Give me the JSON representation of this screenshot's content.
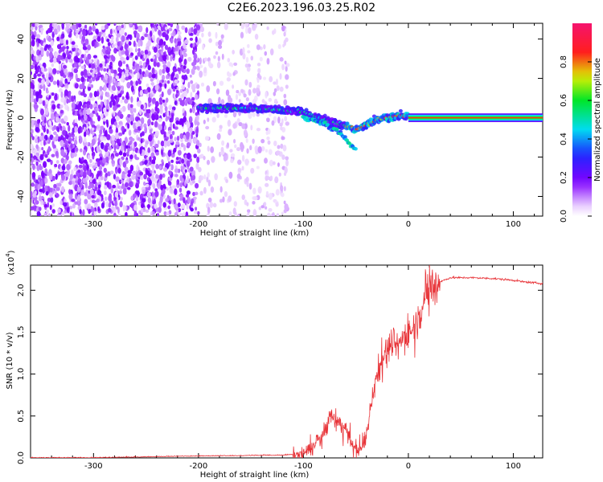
{
  "title": "C2E6.2023.196.03.25.R02",
  "chart_data": [
    {
      "type": "heatmap",
      "xlabel": "Height of straight line (km)",
      "ylabel": "Frequency (Hz)",
      "xlim": [
        -360,
        128
      ],
      "ylim": [
        -50,
        48
      ],
      "xticks": [
        "-300",
        "-200",
        "-100",
        "0",
        "100"
      ],
      "yticks": [
        "-40",
        "-20",
        "0",
        "20",
        "40"
      ],
      "colorbar": {
        "label": "Normalized spectral amplitude",
        "range": [
          0.0,
          1.0
        ],
        "ticks": [
          "0.0",
          "0.2",
          "0.4",
          "0.6",
          "0.8"
        ]
      },
      "ridge_frequency_hz": {
        "x": [
          -200,
          -180,
          -150,
          -120,
          -100,
          -80,
          -60,
          -50,
          -40,
          -30,
          -20,
          -10,
          0,
          128
        ],
        "y": [
          5,
          5,
          5,
          4,
          3,
          -1,
          -4,
          -6,
          -4,
          -1,
          0,
          1,
          1,
          0
        ]
      },
      "branch_frequency_hz": {
        "x": [
          -100,
          -80,
          -70,
          -60,
          -55,
          -50
        ],
        "y": [
          0,
          -3,
          -6,
          -10,
          -14,
          -16
        ]
      }
    },
    {
      "type": "line",
      "xlabel": "Height of straight line (km)",
      "ylabel": "SNR (10 * v/v)",
      "multiplier": "(x10",
      "multiplier_exp": "4",
      "xlim": [
        -360,
        128
      ],
      "ylim": [
        0,
        2.3
      ],
      "xticks": [
        "-300",
        "-200",
        "-100",
        "0",
        "100"
      ],
      "yticks": [
        "0.0",
        "0.5",
        "1.0",
        "1.5",
        "2.0"
      ],
      "color": "#e8353a",
      "series": [
        {
          "x": [
            -360,
            -300,
            -200,
            -120,
            -100,
            -90,
            -80,
            -75,
            -70,
            -65,
            -60,
            -55,
            -50,
            -45,
            -40,
            -35,
            -30,
            -25,
            -20,
            -15,
            -10,
            -5,
            0,
            5,
            10,
            15,
            20,
            25,
            30,
            40,
            50,
            60,
            80,
            100,
            110,
            128
          ],
          "y": [
            0.0,
            0.0,
            0.02,
            0.03,
            0.05,
            0.15,
            0.3,
            0.5,
            0.45,
            0.4,
            0.35,
            0.2,
            0.1,
            0.1,
            0.25,
            0.7,
            1.0,
            1.2,
            1.3,
            1.4,
            1.35,
            1.45,
            1.5,
            1.55,
            1.7,
            1.9,
            2.0,
            2.05,
            2.1,
            2.15,
            2.15,
            2.15,
            2.14,
            2.12,
            2.1,
            2.08
          ]
        }
      ]
    }
  ]
}
